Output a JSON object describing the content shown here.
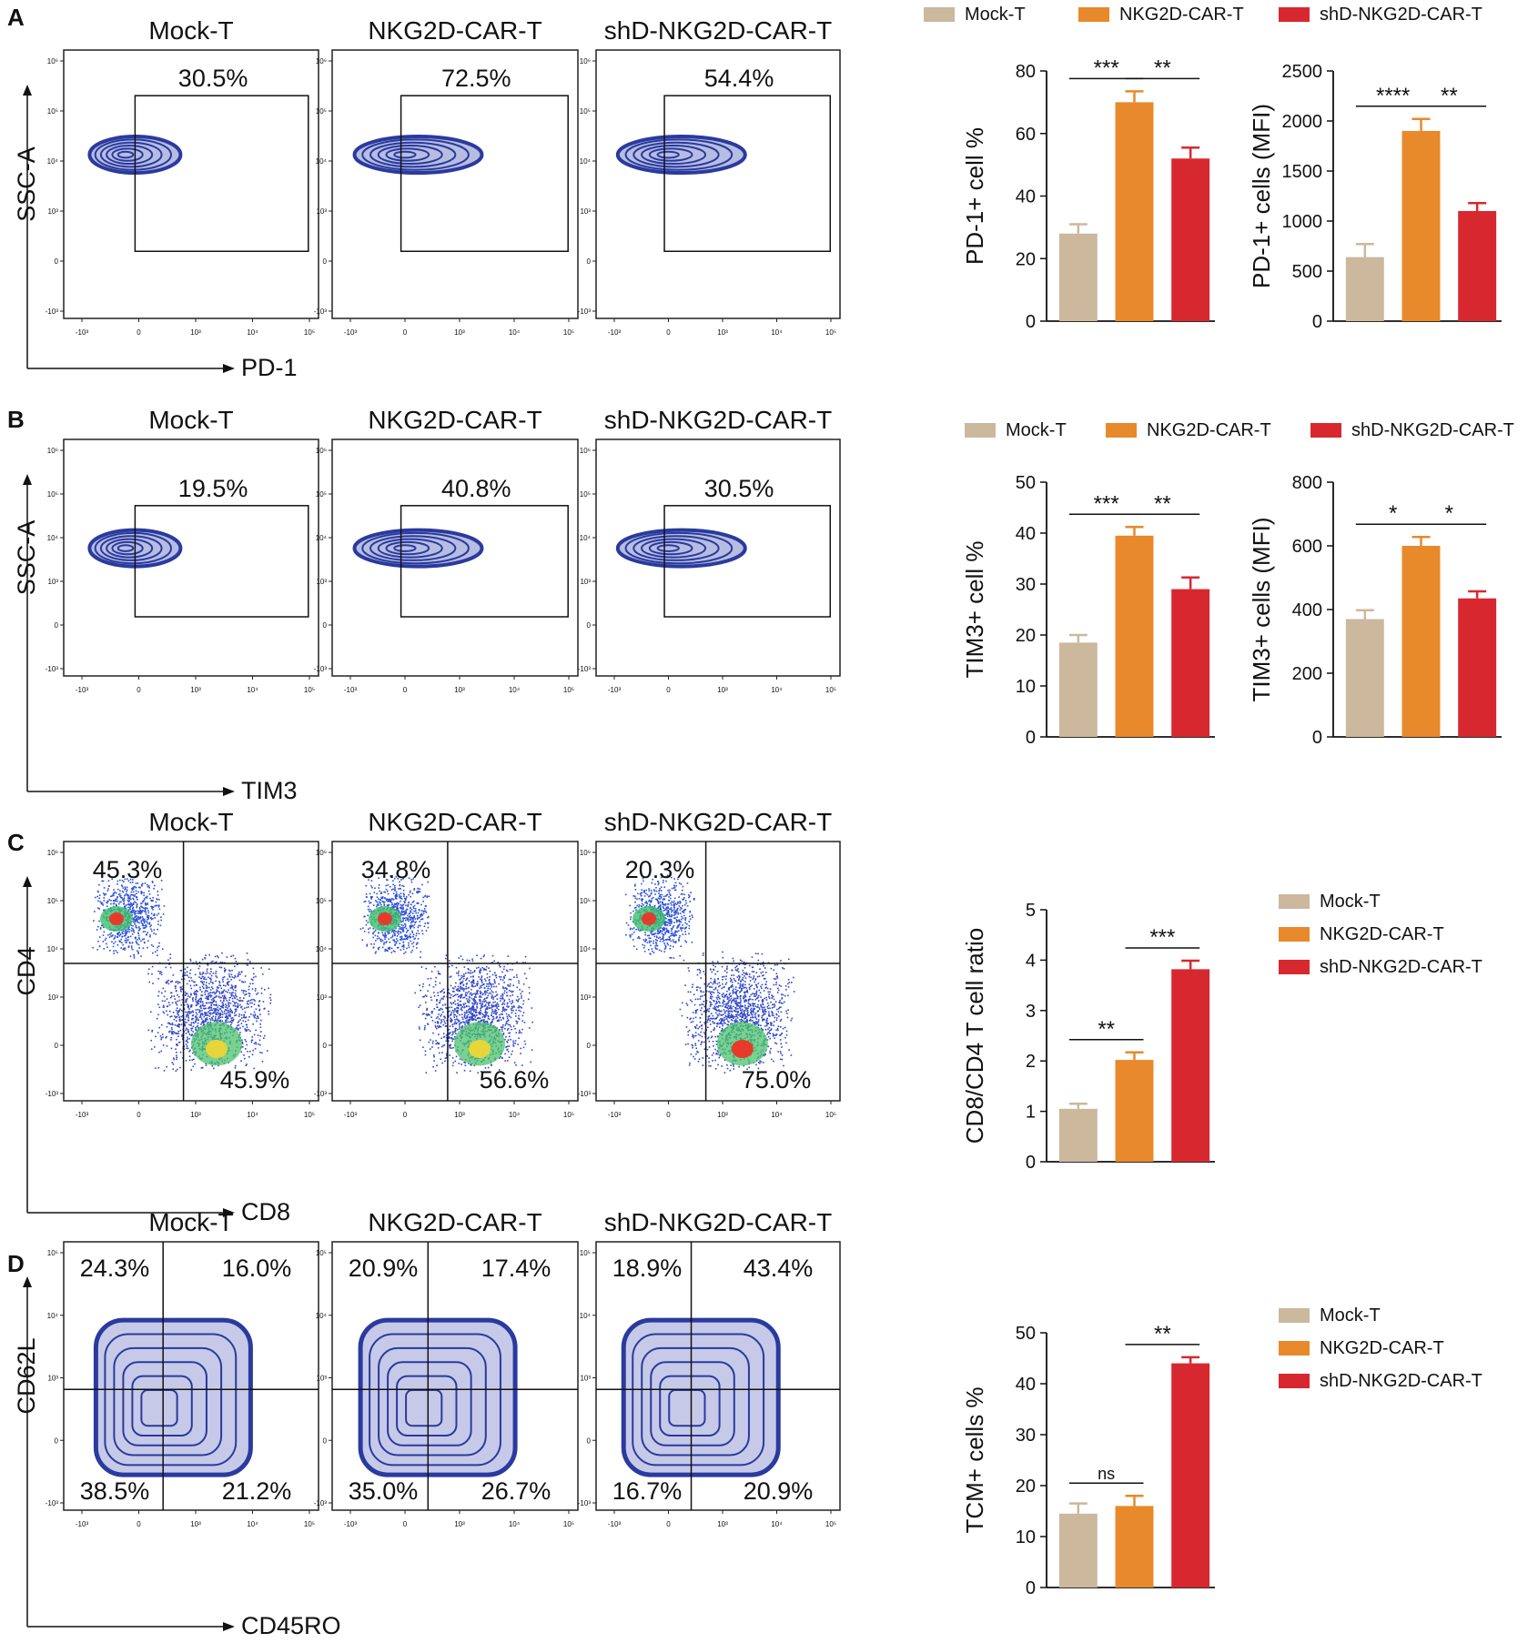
{
  "figure": {
    "colors": {
      "mock": "#cbb89d",
      "nkg": "#e8892b",
      "shd": "#d7282f",
      "contour": "#2a3a9e"
    },
    "legend_labels": [
      "Mock-T",
      "NKG2D-CAR-T",
      "shD-NKG2D-CAR-T"
    ]
  },
  "panels": [
    {
      "letter": "A",
      "flow": {
        "samples": [
          "Mock-T",
          "NKG2D-CAR-T",
          "shD-NKG2D-CAR-T"
        ],
        "y_label": "SSC-A",
        "x_label": "PD-1",
        "gate_type": "box",
        "percentages": [
          [
            "30.5%"
          ],
          [
            "72.5%"
          ],
          [
            "54.4%"
          ]
        ],
        "y_ticks": [
          "10⁶",
          "10⁵",
          "10⁴",
          "10³",
          "0",
          "-10³"
        ],
        "x_ticks": [
          "-10³",
          "0",
          "10³",
          "10⁴",
          "10⁵"
        ]
      },
      "legend": [
        "Mock-T",
        "NKG2D-CAR-T",
        "shD-NKG2D-CAR-T"
      ]
    },
    {
      "letter": "B",
      "flow": {
        "samples": [
          "Mock-T",
          "NKG2D-CAR-T",
          "shD-NKG2D-CAR-T"
        ],
        "y_label": "SSC-A",
        "x_label": "TIM3",
        "gate_type": "box",
        "percentages": [
          [
            "19.5%"
          ],
          [
            "40.8%"
          ],
          [
            "30.5%"
          ]
        ],
        "y_ticks": [
          "10⁶",
          "10⁵",
          "10⁴",
          "10³",
          "0",
          "-10³"
        ],
        "x_ticks": [
          "-10³",
          "0",
          "10³",
          "10⁴",
          "10⁵"
        ]
      },
      "legend": [
        "Mock-T",
        "NKG2D-CAR-T",
        "shD-NKG2D-CAR-T"
      ]
    },
    {
      "letter": "C",
      "flow": {
        "samples": [
          "Mock-T",
          "NKG2D-CAR-T",
          "shD-NKG2D-CAR-T"
        ],
        "y_label": "CD4",
        "x_label": "CD8",
        "gate_type": "quadrant",
        "percentages": [
          [
            "45.3%",
            "45.9%"
          ],
          [
            "34.8%",
            "56.6%"
          ],
          [
            "20.3%",
            "75.0%"
          ]
        ],
        "y_ticks": [
          "10⁶",
          "10⁵",
          "10⁴",
          "10³",
          "0",
          "-10³"
        ],
        "x_ticks": [
          "-10³",
          "0",
          "10³",
          "10⁴",
          "10⁵"
        ]
      },
      "legend": [
        "Mock-T",
        "NKG2D-CAR-T",
        "shD-NKG2D-CAR-T"
      ]
    },
    {
      "letter": "D",
      "flow": {
        "samples": [
          "Mock-T",
          "NKG2D-CAR-T",
          "shD-NKG2D-CAR-T"
        ],
        "y_label": "CD62L",
        "x_label": "CD45RO",
        "gate_type": "quadrant4",
        "percentages": [
          [
            "24.3%",
            "16.0%",
            "38.5%",
            "21.2%"
          ],
          [
            "20.9%",
            "17.4%",
            "35.0%",
            "26.7%"
          ],
          [
            "18.9%",
            "43.4%",
            "16.7%",
            "20.9%"
          ]
        ],
        "y_ticks": [
          "10⁵",
          "10⁴",
          "10³",
          "0",
          "-10³"
        ],
        "x_ticks": [
          "-10³",
          "0",
          "10³",
          "10⁴",
          "10⁵"
        ]
      },
      "legend": [
        "Mock-T",
        "NKG2D-CAR-T",
        "shD-NKG2D-CAR-T"
      ]
    }
  ],
  "chart_data": [
    {
      "id": "A1",
      "type": "bar",
      "categories": [
        "Mock-T",
        "NKG2D-CAR-T",
        "shD-NKG2D-CAR-T"
      ],
      "values": [
        28,
        70,
        52
      ],
      "errors": [
        3,
        3.5,
        3.5
      ],
      "ylabel": "PD-1+ cell %",
      "ylim": [
        0,
        80
      ],
      "yticks": [
        0,
        20,
        40,
        60,
        80
      ],
      "significance": [
        {
          "from": 0,
          "to": 1,
          "label": "***"
        },
        {
          "from": 1,
          "to": 2,
          "label": "**"
        }
      ]
    },
    {
      "id": "A2",
      "type": "bar",
      "categories": [
        "Mock-T",
        "NKG2D-CAR-T",
        "shD-NKG2D-CAR-T"
      ],
      "values": [
        640,
        1900,
        1100
      ],
      "errors": [
        130,
        120,
        80
      ],
      "ylabel": "PD-1+ cells (MFI)",
      "ylim": [
        0,
        2500
      ],
      "yticks": [
        0,
        500,
        1000,
        1500,
        2000,
        2500
      ],
      "significance": [
        {
          "from": 0,
          "to": 1,
          "label": "****"
        },
        {
          "from": 1,
          "to": 2,
          "label": "**"
        }
      ]
    },
    {
      "id": "B1",
      "type": "bar",
      "categories": [
        "Mock-T",
        "NKG2D-CAR-T",
        "shD-NKG2D-CAR-T"
      ],
      "values": [
        18.5,
        39.5,
        29
      ],
      "errors": [
        1.5,
        1.7,
        2.3
      ],
      "ylabel": "TIM3+ cell %",
      "ylim": [
        0,
        50
      ],
      "yticks": [
        0,
        10,
        20,
        30,
        40,
        50
      ],
      "significance": [
        {
          "from": 0,
          "to": 1,
          "label": "***"
        },
        {
          "from": 1,
          "to": 2,
          "label": "**"
        }
      ]
    },
    {
      "id": "B2",
      "type": "bar",
      "categories": [
        "Mock-T",
        "NKG2D-CAR-T",
        "shD-NKG2D-CAR-T"
      ],
      "values": [
        370,
        600,
        435
      ],
      "errors": [
        28,
        28,
        22
      ],
      "ylabel": "TIM3+ cells (MFI)",
      "ylim": [
        0,
        800
      ],
      "yticks": [
        0,
        200,
        400,
        600,
        800
      ],
      "significance": [
        {
          "from": 0,
          "to": 1,
          "label": "*"
        },
        {
          "from": 1,
          "to": 2,
          "label": "*"
        }
      ]
    },
    {
      "id": "C1",
      "type": "bar",
      "categories": [
        "Mock-T",
        "NKG2D-CAR-T",
        "shD-NKG2D-CAR-T"
      ],
      "values": [
        1.05,
        2.02,
        3.82
      ],
      "errors": [
        0.1,
        0.15,
        0.17
      ],
      "ylabel": "CD8/CD4 T cell ratio",
      "ylim": [
        0,
        5
      ],
      "yticks": [
        0,
        1,
        2,
        3,
        4,
        5
      ],
      "significance": [
        {
          "from": 0,
          "to": 1,
          "label": "**"
        },
        {
          "from": 1,
          "to": 2,
          "label": "***"
        }
      ]
    },
    {
      "id": "D1",
      "type": "bar",
      "categories": [
        "Mock-T",
        "NKG2D-CAR-T",
        "shD-NKG2D-CAR-T"
      ],
      "values": [
        14.5,
        16,
        44
      ],
      "errors": [
        2,
        2,
        1.2
      ],
      "ylabel": "TCM+ cells %",
      "ylim": [
        0,
        50
      ],
      "yticks": [
        0,
        10,
        20,
        30,
        40,
        50
      ],
      "significance": [
        {
          "from": 0,
          "to": 1,
          "label": "ns"
        },
        {
          "from": 1,
          "to": 2,
          "label": "**"
        }
      ]
    }
  ]
}
